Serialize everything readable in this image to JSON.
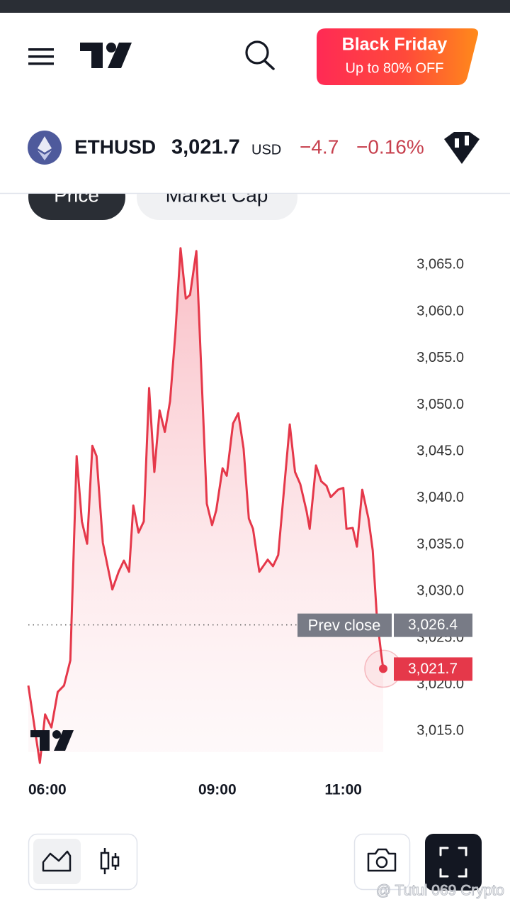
{
  "header": {
    "promo_title": "Black Friday",
    "promo_subtitle": "Up to 80% OFF"
  },
  "ticker": {
    "symbol": "ETHUSD",
    "price": "3,021.7",
    "currency": "USD",
    "change": "−4.7",
    "change_percent": "−0.16%"
  },
  "tabs": [
    "Price",
    "Market Cap"
  ],
  "chart_data": {
    "type": "line",
    "color": "#e5384a",
    "x": [
      "06:00",
      "06:11",
      "06:16",
      "06:22",
      "06:28",
      "06:34",
      "06:40",
      "06:46",
      "06:51",
      "06:56",
      "07:01",
      "07:05",
      "07:11",
      "07:20",
      "07:26",
      "07:31",
      "07:36",
      "07:40",
      "07:45",
      "07:50",
      "07:55",
      "08:00",
      "08:05",
      "08:10",
      "08:15",
      "08:20",
      "08:25",
      "08:30",
      "08:34",
      "08:40",
      "08:50",
      "08:55",
      "08:59",
      "09:05",
      "09:09",
      "09:15",
      "09:20",
      "09:25",
      "09:30",
      "09:34",
      "09:40",
      "09:48",
      "09:53",
      "09:58",
      "10:09",
      "10:14",
      "10:19",
      "10:25",
      "10:28",
      "10:34",
      "10:39",
      "10:44",
      "10:48",
      "10:55",
      "11:00",
      "11:03",
      "11:09",
      "11:13",
      "11:18",
      "11:24",
      "11:28",
      "11:32",
      "11:36",
      "11:38"
    ],
    "values": [
      3019.9,
      3011.6,
      3016.8,
      3015.4,
      3019.2,
      3019.9,
      3022.6,
      3044.5,
      3037.5,
      3035.1,
      3045.6,
      3044.5,
      3035.2,
      3030.2,
      3032.1,
      3033.3,
      3032.1,
      3039.2,
      3036.3,
      3037.5,
      3051.8,
      3042.8,
      3049.4,
      3047.1,
      3050.4,
      3057.6,
      3066.8,
      3061.4,
      3061.8,
      3066.5,
      3039.4,
      3037.1,
      3038.7,
      3043.2,
      3042.4,
      3048.0,
      3049.1,
      3045.3,
      3037.8,
      3036.7,
      3032.1,
      3033.4,
      3032.7,
      3033.9,
      3047.9,
      3042.8,
      3041.5,
      3038.6,
      3036.7,
      3043.5,
      3041.8,
      3041.3,
      3040.1,
      3040.9,
      3041.1,
      3036.7,
      3036.8,
      3034.8,
      3040.9,
      3037.8,
      3034.4,
      3027.2,
      3023.4,
      3021.7
    ],
    "last_value_label": "3,021.7",
    "xlim": [
      "06:00",
      "11:38"
    ],
    "xticks": [
      "06:00",
      "09:00",
      "11:00"
    ],
    "ylim": [
      3011,
      3068
    ],
    "yticks": [
      {
        "value": 3015,
        "label": "3,015.0"
      },
      {
        "value": 3020,
        "label": "3,020.0"
      },
      {
        "value": 3025,
        "label": "3,025.0"
      },
      {
        "value": 3030,
        "label": "3,030.0"
      },
      {
        "value": 3035,
        "label": "3,035.0"
      },
      {
        "value": 3040,
        "label": "3,040.0"
      },
      {
        "value": 3045,
        "label": "3,045.0"
      },
      {
        "value": 3050,
        "label": "3,050.0"
      },
      {
        "value": 3055,
        "label": "3,055.0"
      },
      {
        "value": 3060,
        "label": "3,060.0"
      },
      {
        "value": 3065,
        "label": "3,065.0"
      }
    ],
    "grid": false,
    "prev_close": {
      "label": "Prev close",
      "value": 3026.4,
      "value_label": "3,026.4"
    }
  },
  "watermark": "@ Tutul 069 Crypto"
}
